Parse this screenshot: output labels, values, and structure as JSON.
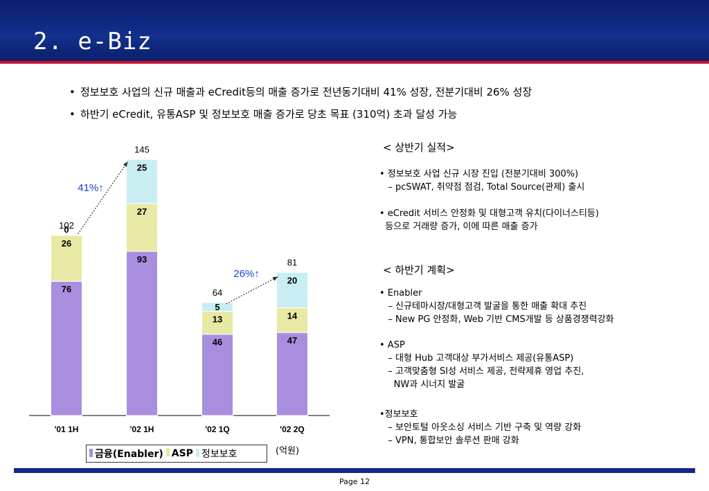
{
  "slide": {
    "title": "2. e-Biz",
    "bullets": [
      "정보보호 사업의 신규 매출과 eCredit등의 매출 증가로  전년동기대비 41% 성장, 전분기대비 26% 성장",
      "하반기 eCredit, 유통ASP 및 정보보호 매출 증가로 당초 목표 (310억) 초과 달성 가능"
    ],
    "unit_label": "(억원)",
    "page": "Page 12",
    "colors": {
      "enabler": "#a98ee0",
      "asp": "#e8e9a4",
      "security": "#c8eef4",
      "header": "#12308c",
      "accent_red": "#c8102e",
      "growth_text": "#1a3fcf"
    }
  },
  "chart_data": {
    "type": "bar",
    "stacked": true,
    "categories": [
      "'01 1H",
      "'02 1H",
      "'02 1Q",
      "'02 2Q"
    ],
    "series": [
      {
        "name": "금융(Enabler)",
        "values": [
          76,
          93,
          46,
          47
        ]
      },
      {
        "name": "ASP",
        "values": [
          26,
          27,
          13,
          14
        ]
      },
      {
        "name": "정보보호",
        "values": [
          0,
          25,
          5,
          20
        ]
      }
    ],
    "totals": [
      "102",
      "145",
      "64",
      "81"
    ],
    "annotations": [
      "41%↑",
      "26%↑"
    ],
    "ylim": [
      0,
      145
    ],
    "legend_position": "bottom"
  },
  "right_panel": {
    "h1_head": "< 상반기 실적>",
    "h1_items": [
      "• 정보보호 사업 신규 시장 진입 (전분기대비 300%)",
      "   – pcSWAT, 취약점 점검, Total Source(관제) 출시",
      "• eCredit 서비스 안정화 및 대형고객 유치(다이너스티등)",
      "  등으로 거래량 증가, 이에 따른 매출 증가"
    ],
    "h2_head": "< 하반기 계획>",
    "h2_items": [
      "• Enabler",
      "   – 신규테마시장/대형고객 발굴을 통한 매출 확대 추진",
      "   – New PG 안정화, Web 기반 CMS개발 등 상품경쟁력강화",
      "• ASP",
      "   – 대형 Hub 고객대상 부가서비스 제공(유통ASP)",
      "   – 고객맞춤형 SI성 서비스 제공, 전략제휴 영업 추진,",
      "     NW과 시너지 발굴",
      "•정보보호",
      "   – 보안토털 아웃소싱 서비스 기반 구축 및 역량 강화",
      "   – VPN, 통합보안 솔루션 판매 강화"
    ]
  }
}
